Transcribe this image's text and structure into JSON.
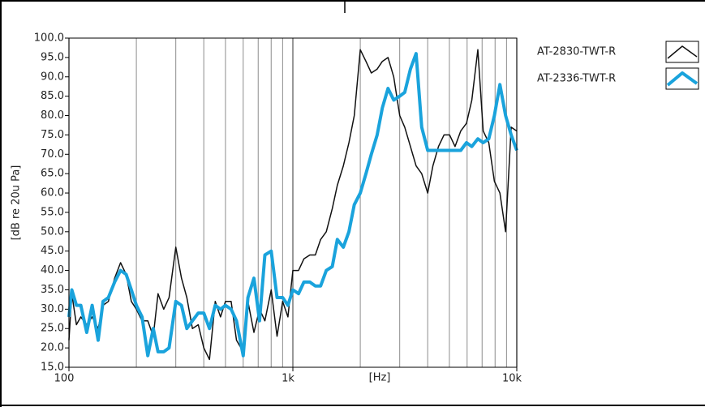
{
  "chart_data": {
    "type": "line",
    "ylabel": "[dB re 20u Pa]",
    "xlabel": "[Hz]",
    "log_x": true,
    "xlim": [
      100,
      10000
    ],
    "ylim": [
      15,
      100
    ],
    "xticks": [
      100,
      {
        "value": 1000,
        "label": "1k"
      },
      {
        "value": 10000,
        "label": "10k"
      }
    ],
    "xminorticks": [
      200,
      300,
      400,
      500,
      600,
      700,
      800,
      900,
      2000,
      3000,
      4000,
      5000,
      6000,
      7000,
      8000,
      9000
    ],
    "yticks": [
      {
        "value": 100,
        "label": "100.0"
      },
      {
        "value": 95,
        "label": "95.0"
      },
      {
        "value": 90,
        "label": "90.0"
      },
      {
        "value": 85,
        "label": "85.0"
      },
      {
        "value": 80,
        "label": "80.0"
      },
      {
        "value": 75,
        "label": "75.0"
      },
      {
        "value": 70,
        "label": "70.0"
      },
      {
        "value": 65,
        "label": "65.0"
      },
      {
        "value": 60,
        "label": "60.0"
      },
      {
        "value": 55,
        "label": "55.0"
      },
      {
        "value": 50,
        "label": "50.0"
      },
      {
        "value": 45,
        "label": "45.0"
      },
      {
        "value": 40,
        "label": "40.0"
      },
      {
        "value": 35,
        "label": "35.0"
      },
      {
        "value": 30,
        "label": "30.0"
      },
      {
        "value": 25,
        "label": "25.0"
      },
      {
        "value": 20,
        "label": "20.0"
      },
      {
        "value": 15,
        "label": "15.0"
      }
    ],
    "grid": true,
    "legend": "right",
    "x": [
      100,
      103,
      108,
      113,
      120,
      127,
      135,
      142,
      150,
      160,
      170,
      180,
      190,
      200,
      212,
      225,
      238,
      250,
      265,
      280,
      300,
      318,
      336,
      356,
      378,
      400,
      424,
      450,
      475,
      500,
      530,
      560,
      600,
      630,
      670,
      710,
      750,
      800,
      850,
      900,
      950,
      1000,
      1060,
      1120,
      1190,
      1260,
      1330,
      1410,
      1500,
      1580,
      1680,
      1780,
      1880,
      2000,
      2120,
      2240,
      2380,
      2510,
      2660,
      2820,
      3000,
      3160,
      3350,
      3550,
      3760,
      4000,
      4220,
      4470,
      4730,
      5010,
      5300,
      5620,
      5960,
      6300,
      6700,
      7080,
      7500,
      7940,
      8410,
      8910,
      9440,
      10000
    ],
    "series": [
      {
        "name": "AT-2830-TWT-R",
        "color": "#111111",
        "width": 1.5,
        "values": [
          22,
          34,
          26,
          28,
          26,
          28,
          25,
          31,
          32,
          38,
          42,
          39,
          32,
          30,
          27,
          27,
          23,
          34,
          30,
          33,
          46,
          38,
          33,
          25,
          26,
          20,
          17,
          32,
          28,
          32,
          32,
          22,
          19,
          32,
          24,
          30,
          27,
          35,
          23,
          32,
          28,
          40,
          40,
          43,
          44,
          44,
          48,
          50,
          56,
          62,
          67,
          73,
          80,
          97,
          94,
          91,
          92,
          94,
          95,
          90,
          80,
          77,
          72,
          67,
          65,
          60,
          67,
          72,
          75,
          75,
          72,
          76,
          78,
          84,
          97,
          76,
          73,
          63,
          60,
          50,
          77,
          76
        ]
      },
      {
        "name": "AT-2336-TWT-R",
        "color": "#1aa3dc",
        "width": 4,
        "values": [
          28,
          35,
          31,
          31,
          24,
          31,
          22,
          32,
          33,
          37,
          40,
          39,
          35,
          31,
          28,
          18,
          25,
          19,
          19,
          20,
          32,
          31,
          25,
          27,
          29,
          29,
          25,
          31,
          30,
          31,
          30,
          27,
          18,
          33,
          38,
          27,
          44,
          45,
          33,
          33,
          31,
          35,
          34,
          37,
          37,
          36,
          36,
          40,
          41,
          48,
          46,
          50,
          57,
          60,
          65,
          70,
          75,
          82,
          87,
          84,
          85,
          86,
          92,
          96,
          77,
          71,
          71,
          71,
          71,
          71,
          71,
          71,
          73,
          72,
          74,
          73,
          74,
          80,
          88,
          80,
          75,
          71
        ]
      }
    ]
  }
}
